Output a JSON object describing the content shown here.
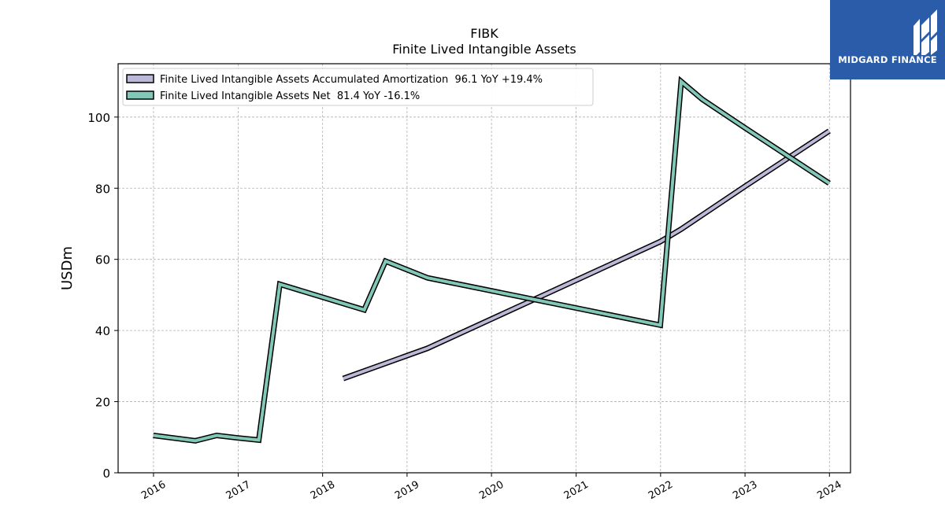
{
  "chart_data": {
    "type": "line",
    "title": "FIBK",
    "subtitle": "Finite Lived Intangible Assets",
    "ylabel": "USDm",
    "xlabel": "",
    "ylim": [
      0,
      115
    ],
    "xlim": [
      "2015-08-01",
      "2024-04-01"
    ],
    "yticks": [
      0,
      20,
      40,
      60,
      80,
      100
    ],
    "xticks": [
      "2016",
      "2017",
      "2018",
      "2019",
      "2020",
      "2021",
      "2022",
      "2023",
      "2024"
    ],
    "grid": true,
    "legend_position": "top-left",
    "series": [
      {
        "name": "Finite Lived Intangible Assets Accumulated Amortization",
        "legend_label": "Finite Lived Intangible Assets Accumulated Amortization  96.1 YoY +19.4%",
        "color": "#bcb8d8",
        "points": [
          [
            "2018-03-31",
            26.5
          ],
          [
            "2019-03-31",
            35.0
          ],
          [
            "2021-12-31",
            65.0
          ],
          [
            "2022-03-31",
            68.5
          ],
          [
            "2022-12-31",
            80.5
          ],
          [
            "2023-12-31",
            96.1
          ]
        ]
      },
      {
        "name": "Finite Lived Intangible Assets Net",
        "legend_label": "Finite Lived Intangible Assets Net  81.4 YoY -16.1%",
        "color": "#82c8b8",
        "points": [
          [
            "2015-12-31",
            10.5
          ],
          [
            "2016-06-30",
            9.0
          ],
          [
            "2016-09-30",
            10.5
          ],
          [
            "2016-12-31",
            9.8
          ],
          [
            "2017-03-31",
            9.2
          ],
          [
            "2017-06-30",
            53.0
          ],
          [
            "2018-06-30",
            45.8
          ],
          [
            "2018-09-30",
            59.5
          ],
          [
            "2019-03-31",
            54.8
          ],
          [
            "2021-12-31",
            41.5
          ],
          [
            "2022-03-31",
            110.0
          ],
          [
            "2022-06-30",
            105.0
          ],
          [
            "2022-12-31",
            97.0
          ],
          [
            "2023-12-31",
            81.4
          ]
        ]
      }
    ]
  },
  "logo": {
    "text": "MIDGARD FINANCE",
    "bg_color": "#2a5caa"
  }
}
